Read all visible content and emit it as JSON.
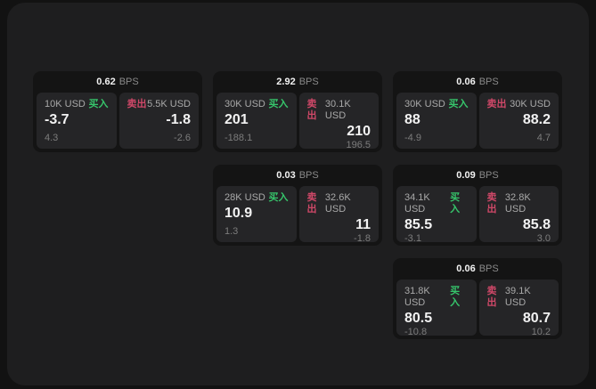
{
  "labels": {
    "buy": "买入",
    "sell": "卖出",
    "bps_unit": "BPS"
  },
  "colors": {
    "buy_green": "#36c56b",
    "sell_red": "#cf4868",
    "window_bg": "#1e1e1f",
    "card_bg": "#141414",
    "panel_bg": "#252527"
  },
  "cards": [
    {
      "bps": "0.62",
      "buy": {
        "size": "10K USD",
        "price": "-3.7",
        "change": "4.3"
      },
      "sell": {
        "size": "5.5K USD",
        "price": "-1.8",
        "change": "-2.6"
      }
    },
    {
      "bps": "2.92",
      "buy": {
        "size": "30K USD",
        "price": "201",
        "change": "-188.1"
      },
      "sell": {
        "size": "30.1K USD",
        "price": "210",
        "change": "196.5"
      }
    },
    {
      "bps": "0.06",
      "buy": {
        "size": "30K USD",
        "price": "88",
        "change": "-4.9"
      },
      "sell": {
        "size": "30K USD",
        "price": "88.2",
        "change": "4.7"
      }
    },
    {
      "bps": "0.03",
      "buy": {
        "size": "28K USD",
        "price": "10.9",
        "change": "1.3"
      },
      "sell": {
        "size": "32.6K USD",
        "price": "11",
        "change": "-1.8"
      }
    },
    {
      "bps": "0.09",
      "buy": {
        "size": "34.1K USD",
        "price": "85.5",
        "change": "-3.1"
      },
      "sell": {
        "size": "32.8K USD",
        "price": "85.8",
        "change": "3.0"
      }
    },
    {
      "bps": "0.06",
      "buy": {
        "size": "31.8K USD",
        "price": "80.5",
        "change": "-10.8"
      },
      "sell": {
        "size": "39.1K USD",
        "price": "80.7",
        "change": "10.2"
      }
    }
  ]
}
